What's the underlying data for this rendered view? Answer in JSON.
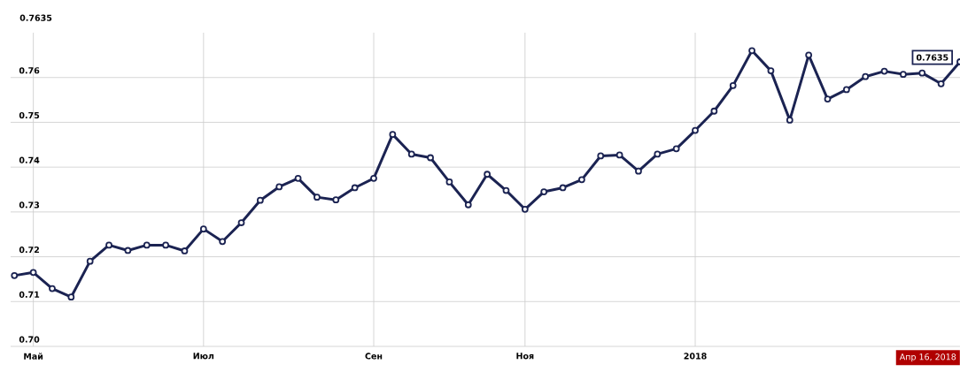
{
  "chart_data": {
    "type": "line",
    "color": "#1b2352",
    "marker": "circle",
    "grid": true,
    "categories": [
      null,
      "Май",
      null,
      null,
      null,
      null,
      null,
      null,
      null,
      null,
      "Июл",
      null,
      null,
      null,
      null,
      null,
      null,
      null,
      null,
      "Сен",
      null,
      null,
      null,
      null,
      null,
      null,
      null,
      "Ноя",
      null,
      null,
      null,
      null,
      null,
      null,
      null,
      null,
      "2018",
      null,
      null,
      null,
      null,
      null,
      null,
      null,
      null,
      null,
      null,
      null,
      null,
      null,
      null
    ],
    "values": [
      0.7158,
      0.7165,
      0.7129,
      0.711,
      0.719,
      0.7226,
      0.7214,
      0.7226,
      0.7226,
      0.7213,
      0.7262,
      0.7234,
      0.7276,
      0.7326,
      0.7356,
      0.7375,
      0.7333,
      0.7327,
      0.7354,
      0.7375,
      0.7473,
      0.7429,
      0.7421,
      0.7367,
      0.7316,
      0.7384,
      0.7348,
      0.7306,
      0.7345,
      0.7354,
      0.7372,
      0.7425,
      0.7427,
      0.7391,
      0.7429,
      0.7441,
      0.7482,
      0.7525,
      0.7582,
      0.766,
      0.7615,
      0.7505,
      0.765,
      0.7552,
      0.7573,
      0.7602,
      0.7614,
      0.7607,
      0.761,
      0.7586,
      0.7635
    ],
    "ylim": [
      0.7,
      0.77
    ],
    "yticks": [
      {
        "value": 0.7,
        "label": "0.70"
      },
      0.71,
      0.72,
      0.73,
      0.74,
      0.75,
      0.76
    ],
    "annotations": [
      "0.7635",
      "0.7635",
      "Апр 16, 2018"
    ]
  }
}
